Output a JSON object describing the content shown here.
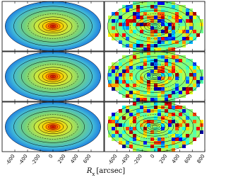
{
  "chart_data": {
    "type": "map",
    "xlabel": {
      "symbol": "R",
      "subscript": "x",
      "unit": "[arcsec]"
    },
    "xlim": [
      -800,
      800
    ],
    "columns": [
      {
        "xticks": [
          -600,
          -400,
          -200,
          0,
          200,
          400,
          600
        ]
      },
      {
        "xticks": [
          -600,
          -400,
          -200,
          0,
          200,
          400,
          600,
          800
        ]
      }
    ]
  }
}
